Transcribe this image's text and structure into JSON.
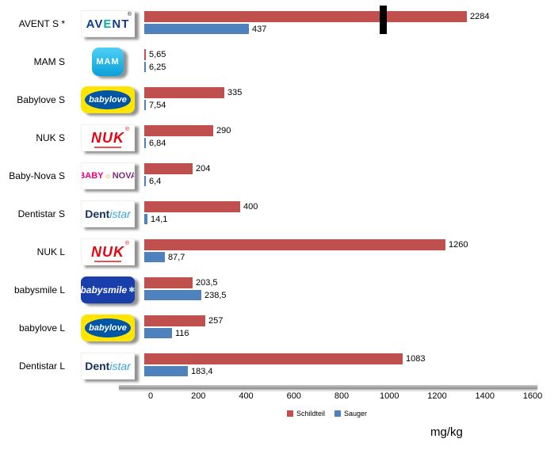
{
  "colors": {
    "schildteil": "#C0504D",
    "sauger": "#4F81BD",
    "break_marker": "#000000"
  },
  "axis": {
    "min": 0,
    "max": 1600,
    "ticks": [
      "0",
      "200",
      "400",
      "600",
      "800",
      "1000",
      "1200",
      "1400",
      "1600"
    ]
  },
  "legend": [
    {
      "label": "Schildteil",
      "color": "#C0504D"
    },
    {
      "label": "Sauger",
      "color": "#4F81BD"
    }
  ],
  "unit_label": "mg/kg",
  "chart_data": {
    "type": "bar",
    "orientation": "horizontal",
    "categories": [
      "AVENT S  *",
      "MAM S",
      "Babylove S",
      "NUK S",
      "Baby-Nova S",
      "Dentistar S",
      "NUK L",
      "babysmile L",
      "babylove L",
      "Dentistar L"
    ],
    "logo_keys": [
      "avent",
      "mam",
      "babylove",
      "nuk",
      "babynova",
      "dentistar",
      "nuk",
      "babysmile",
      "babylove",
      "dentistar"
    ],
    "series": [
      {
        "name": "Schildteil",
        "values": [
          2284,
          5.65,
          335,
          290,
          204,
          400,
          1260,
          203.5,
          257,
          1083
        ],
        "labels": [
          "2284",
          "5,65",
          "335",
          "290",
          "204",
          "400",
          "1260",
          "203,5",
          "257",
          "1083"
        ]
      },
      {
        "name": "Sauger",
        "values": [
          437,
          6.25,
          7.54,
          6.84,
          6.4,
          14.1,
          87.7,
          238.5,
          116,
          183.4
        ],
        "labels": [
          "437",
          "6,25",
          "7,54",
          "6,84",
          "6,4",
          "14,1",
          "87,7",
          "238,5",
          "116",
          "183,4"
        ]
      }
    ],
    "axis_break": {
      "row": 0,
      "series": "Schildteil",
      "marker_position": 985,
      "bar_display_length": 1350
    },
    "xlabel": "mg/kg",
    "xlim": [
      0,
      1600
    ],
    "legend_position": "bottom"
  },
  "logos": {
    "avent": {
      "part1": "AV",
      "part2": "E",
      "part3": "NT",
      "reg": "®"
    },
    "mam": {
      "text": "MAM"
    },
    "babylove": {
      "text": "babylove"
    },
    "nuk": {
      "text": "NUK",
      "reg": "®"
    },
    "babynova": {
      "part1": "BABY",
      "sun": "☼",
      "part2": "NOVA"
    },
    "dentistar": {
      "part1": "Dent",
      "part2": "istar"
    },
    "babysmile": {
      "text": "babysmile",
      "icon": "✱"
    }
  }
}
